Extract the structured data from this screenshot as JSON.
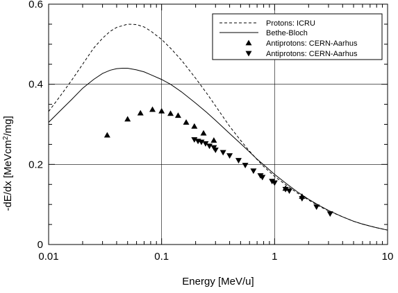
{
  "chart_data": {
    "type": "scatter",
    "xlabel": "Energy [MeV/u]",
    "ylabel_parts": [
      "-dE/dx [MeVcm",
      "2",
      "/mg]"
    ],
    "x_scale": "log",
    "xlim": [
      0.01,
      10
    ],
    "ylim": [
      0,
      0.6
    ],
    "x_ticks": [
      {
        "value": 0.01,
        "label": "0.01"
      },
      {
        "value": 0.1,
        "label": "0.1"
      },
      {
        "value": 1,
        "label": "1"
      },
      {
        "value": 10,
        "label": "10"
      }
    ],
    "y_ticks": [
      {
        "value": 0,
        "label": "0"
      },
      {
        "value": 0.2,
        "label": "0.2"
      },
      {
        "value": 0.4,
        "label": "0.4"
      },
      {
        "value": 0.6,
        "label": "0.6"
      }
    ],
    "grid": true,
    "legend_position": "top-right",
    "series": [
      {
        "name": "Protons: ICRU",
        "style": "dashed-line",
        "color": "#000000",
        "points": [
          [
            0.01,
            0.332
          ],
          [
            0.013,
            0.375
          ],
          [
            0.016,
            0.41
          ],
          [
            0.02,
            0.45
          ],
          [
            0.025,
            0.49
          ],
          [
            0.03,
            0.515
          ],
          [
            0.035,
            0.532
          ],
          [
            0.04,
            0.542
          ],
          [
            0.05,
            0.55
          ],
          [
            0.06,
            0.549
          ],
          [
            0.07,
            0.543
          ],
          [
            0.08,
            0.533
          ],
          [
            0.1,
            0.512
          ],
          [
            0.12,
            0.49
          ],
          [
            0.15,
            0.46
          ],
          [
            0.2,
            0.415
          ],
          [
            0.25,
            0.378
          ],
          [
            0.3,
            0.346
          ],
          [
            0.4,
            0.295
          ],
          [
            0.5,
            0.26
          ],
          [
            0.6,
            0.233
          ],
          [
            0.7,
            0.212
          ],
          [
            0.8,
            0.195
          ],
          [
            1,
            0.17
          ],
          [
            1.3,
            0.146
          ],
          [
            1.6,
            0.128
          ],
          [
            2,
            0.111
          ],
          [
            2.5,
            0.095
          ],
          [
            3,
            0.084
          ],
          [
            4,
            0.069
          ],
          [
            5,
            0.058
          ],
          [
            6,
            0.051
          ],
          [
            7,
            0.046
          ],
          [
            8,
            0.042
          ],
          [
            10,
            0.036
          ]
        ]
      },
      {
        "name": "Bethe-Bloch",
        "style": "solid-line",
        "color": "#000000",
        "points": [
          [
            0.01,
            0.305
          ],
          [
            0.013,
            0.337
          ],
          [
            0.016,
            0.362
          ],
          [
            0.02,
            0.39
          ],
          [
            0.025,
            0.412
          ],
          [
            0.03,
            0.427
          ],
          [
            0.035,
            0.435
          ],
          [
            0.04,
            0.439
          ],
          [
            0.045,
            0.44
          ],
          [
            0.05,
            0.44
          ],
          [
            0.06,
            0.436
          ],
          [
            0.07,
            0.431
          ],
          [
            0.08,
            0.424
          ],
          [
            0.1,
            0.412
          ],
          [
            0.12,
            0.4
          ],
          [
            0.15,
            0.381
          ],
          [
            0.2,
            0.353
          ],
          [
            0.25,
            0.33
          ],
          [
            0.3,
            0.31
          ],
          [
            0.4,
            0.277
          ],
          [
            0.5,
            0.252
          ],
          [
            0.6,
            0.231
          ],
          [
            0.7,
            0.213
          ],
          [
            0.8,
            0.199
          ],
          [
            1,
            0.175
          ],
          [
            1.3,
            0.15
          ],
          [
            1.6,
            0.131
          ],
          [
            2,
            0.113
          ],
          [
            2.5,
            0.097
          ],
          [
            3,
            0.085
          ],
          [
            4,
            0.069
          ],
          [
            5,
            0.058
          ],
          [
            6,
            0.051
          ],
          [
            7,
            0.046
          ],
          [
            8,
            0.042
          ],
          [
            10,
            0.036
          ]
        ]
      },
      {
        "name": "Antiprotons: CERN-Aarhus",
        "style": "triangle-up",
        "color": "#000000",
        "points": [
          [
            0.033,
            0.273
          ],
          [
            0.05,
            0.313
          ],
          [
            0.065,
            0.328
          ],
          [
            0.083,
            0.337
          ],
          [
            0.1,
            0.333
          ],
          [
            0.12,
            0.327
          ],
          [
            0.14,
            0.322
          ],
          [
            0.165,
            0.305
          ],
          [
            0.195,
            0.295
          ],
          [
            0.235,
            0.278
          ],
          [
            0.29,
            0.26
          ],
          [
            1.25,
            0.14
          ],
          [
            1.75,
            0.12
          ]
        ]
      },
      {
        "name": "Antiprotons: CERN-Aarhus",
        "style": "triangle-down",
        "color": "#000000",
        "points": [
          [
            0.195,
            0.262
          ],
          [
            0.21,
            0.258
          ],
          [
            0.225,
            0.256
          ],
          [
            0.245,
            0.252
          ],
          [
            0.265,
            0.246
          ],
          [
            0.29,
            0.242
          ],
          [
            0.3,
            0.236
          ],
          [
            0.35,
            0.23
          ],
          [
            0.4,
            0.222
          ],
          [
            0.48,
            0.21
          ],
          [
            0.55,
            0.198
          ],
          [
            0.65,
            0.184
          ],
          [
            0.75,
            0.172
          ],
          [
            0.78,
            0.168
          ],
          [
            0.95,
            0.158
          ],
          [
            1,
            0.154
          ],
          [
            1.25,
            0.138
          ],
          [
            1.35,
            0.134
          ],
          [
            1.75,
            0.115
          ],
          [
            2.35,
            0.094
          ],
          [
            3.1,
            0.077
          ]
        ]
      }
    ]
  }
}
